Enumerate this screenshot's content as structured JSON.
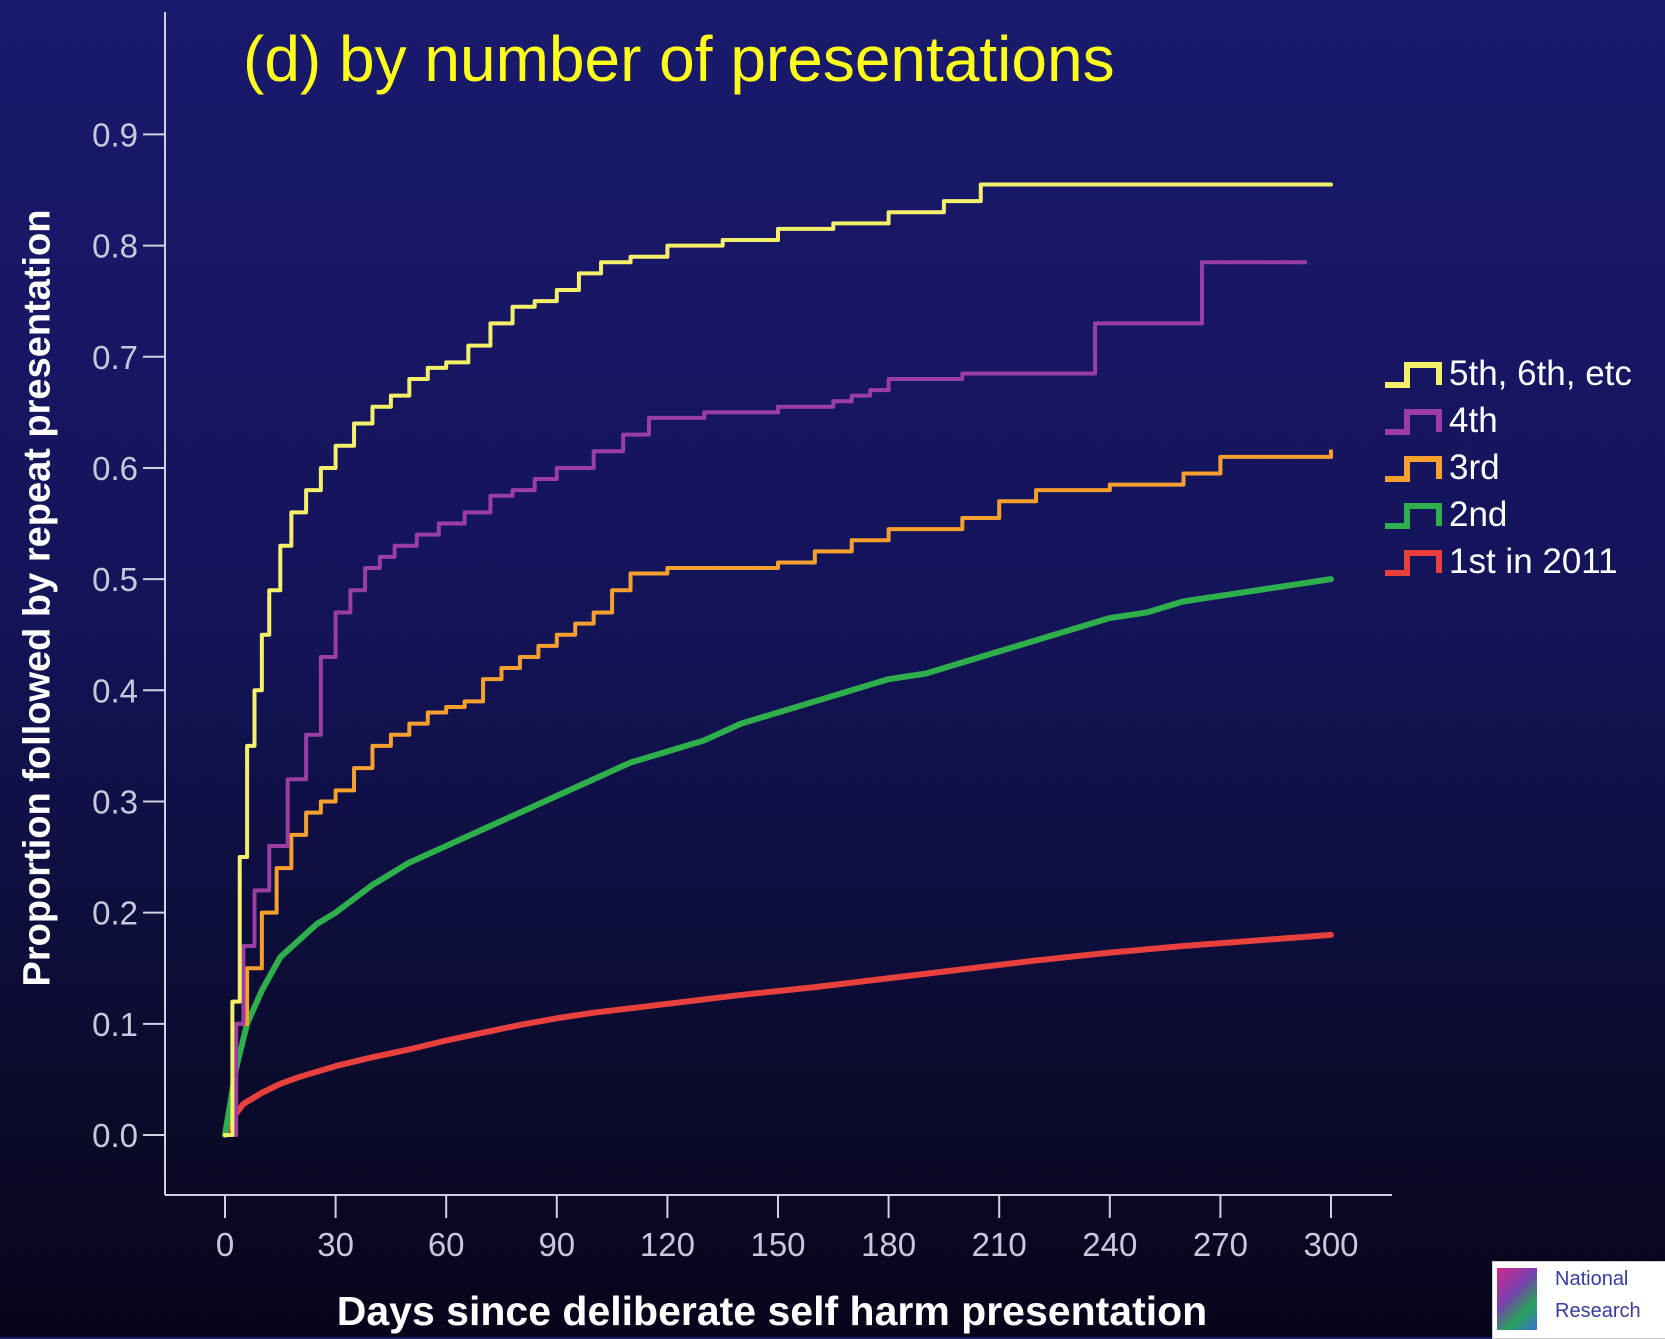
{
  "chart_data": {
    "type": "line",
    "title": "(d) by number of presentations",
    "xlabel": "Days since deliberate self harm presentation",
    "ylabel": "Proportion followed by repeat presentation",
    "xlim": [
      0,
      300
    ],
    "ylim": [
      0.0,
      0.9
    ],
    "xticks": [
      0,
      30,
      60,
      90,
      120,
      150,
      180,
      210,
      240,
      270,
      300
    ],
    "yticks": [
      0.0,
      0.1,
      0.2,
      0.3,
      0.4,
      0.5,
      0.6,
      0.7,
      0.8,
      0.9
    ],
    "xtick_labels": [
      "0",
      "30",
      "60",
      "90",
      "120",
      "150",
      "180",
      "210",
      "240",
      "270",
      "300"
    ],
    "ytick_labels": [
      "0.0",
      "0.1",
      "0.2",
      "0.3",
      "0.4",
      "0.5",
      "0.6",
      "0.7",
      "0.8",
      "0.9"
    ],
    "grid": false,
    "legend_position": "right",
    "series": [
      {
        "name": "5th, 6th, etc",
        "color": "#f5f06a",
        "step": true,
        "x": [
          0,
          2,
          4,
          6,
          8,
          10,
          12,
          15,
          18,
          22,
          26,
          30,
          35,
          40,
          45,
          50,
          55,
          60,
          66,
          72,
          78,
          84,
          90,
          96,
          102,
          110,
          120,
          135,
          150,
          165,
          180,
          195,
          205,
          300
        ],
        "y": [
          0,
          0.12,
          0.25,
          0.35,
          0.4,
          0.45,
          0.49,
          0.53,
          0.56,
          0.58,
          0.6,
          0.62,
          0.64,
          0.655,
          0.665,
          0.68,
          0.69,
          0.695,
          0.71,
          0.73,
          0.745,
          0.75,
          0.76,
          0.775,
          0.785,
          0.79,
          0.8,
          0.805,
          0.815,
          0.82,
          0.83,
          0.84,
          0.855,
          0.855
        ]
      },
      {
        "name": "4th",
        "color": "#9b3ea3",
        "step": true,
        "x": [
          0,
          3,
          5,
          8,
          12,
          17,
          22,
          26,
          30,
          34,
          38,
          42,
          46,
          52,
          58,
          65,
          72,
          78,
          84,
          90,
          100,
          108,
          115,
          130,
          150,
          165,
          170,
          175,
          180,
          200,
          220,
          235,
          236,
          264,
          265,
          293
        ],
        "y": [
          0,
          0.1,
          0.17,
          0.22,
          0.26,
          0.32,
          0.36,
          0.43,
          0.47,
          0.49,
          0.51,
          0.52,
          0.53,
          0.54,
          0.55,
          0.56,
          0.575,
          0.58,
          0.59,
          0.6,
          0.615,
          0.63,
          0.645,
          0.65,
          0.655,
          0.66,
          0.665,
          0.67,
          0.68,
          0.685,
          0.685,
          0.685,
          0.73,
          0.73,
          0.785,
          0.785
        ]
      },
      {
        "name": "3rd",
        "color": "#f7a02e",
        "step": true,
        "x": [
          0,
          3,
          6,
          10,
          14,
          18,
          22,
          26,
          30,
          35,
          40,
          45,
          50,
          55,
          60,
          65,
          70,
          75,
          80,
          85,
          90,
          95,
          100,
          105,
          110,
          120,
          140,
          150,
          160,
          170,
          180,
          200,
          210,
          220,
          240,
          260,
          270,
          300
        ],
        "y": [
          0,
          0.1,
          0.15,
          0.2,
          0.24,
          0.27,
          0.29,
          0.3,
          0.31,
          0.33,
          0.35,
          0.36,
          0.37,
          0.38,
          0.385,
          0.39,
          0.41,
          0.42,
          0.43,
          0.44,
          0.45,
          0.46,
          0.47,
          0.49,
          0.505,
          0.51,
          0.51,
          0.515,
          0.525,
          0.535,
          0.545,
          0.555,
          0.57,
          0.58,
          0.585,
          0.595,
          0.61,
          0.615
        ]
      },
      {
        "name": "2nd",
        "color": "#2fae4c",
        "step": false,
        "x": [
          0,
          3,
          6,
          10,
          15,
          20,
          25,
          30,
          40,
          50,
          60,
          70,
          80,
          90,
          100,
          110,
          120,
          130,
          140,
          150,
          160,
          170,
          180,
          190,
          200,
          210,
          220,
          230,
          240,
          250,
          260,
          270,
          280,
          290,
          300
        ],
        "y": [
          0,
          0.06,
          0.1,
          0.13,
          0.16,
          0.175,
          0.19,
          0.2,
          0.225,
          0.245,
          0.26,
          0.275,
          0.29,
          0.305,
          0.32,
          0.335,
          0.345,
          0.355,
          0.37,
          0.38,
          0.39,
          0.4,
          0.41,
          0.415,
          0.425,
          0.435,
          0.445,
          0.455,
          0.465,
          0.47,
          0.48,
          0.485,
          0.49,
          0.495,
          0.5
        ]
      },
      {
        "name": "1st in 2011",
        "color": "#e8403c",
        "step": false,
        "x": [
          0,
          2,
          5,
          10,
          15,
          20,
          30,
          40,
          50,
          60,
          70,
          80,
          90,
          100,
          120,
          140,
          160,
          180,
          200,
          220,
          240,
          260,
          280,
          300
        ],
        "y": [
          0,
          0.015,
          0.028,
          0.038,
          0.046,
          0.052,
          0.062,
          0.07,
          0.077,
          0.085,
          0.092,
          0.099,
          0.105,
          0.11,
          0.118,
          0.126,
          0.133,
          0.141,
          0.149,
          0.157,
          0.164,
          0.17,
          0.175,
          0.18
        ]
      }
    ]
  },
  "logo": {
    "line1": "National",
    "line2": "Research"
  }
}
